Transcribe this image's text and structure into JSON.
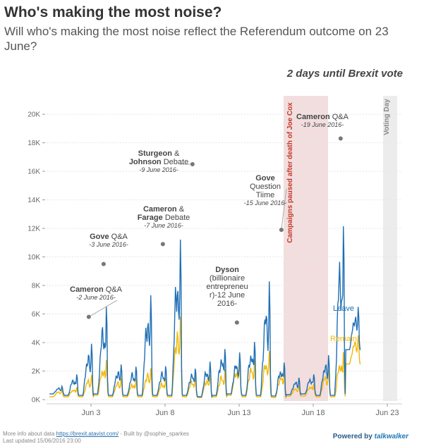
{
  "header": {
    "title": "Who's making the most noise?",
    "subtitle": "Will who's making the most noise reflect the Referendum outcome on 23 June?",
    "countdown": "2 days until Brexit vote"
  },
  "footer": {
    "more_info_prefix": "More info about data",
    "more_info_link": "https://brexit.atavist.com/",
    "built_by": "- Built by @sophie_sparkes",
    "last_updated": "Last updated 15/06/2016 23:00",
    "powered_by": "Powered by",
    "brand": "talkwalker"
  },
  "colors": {
    "leave": "#1f6fb5",
    "remain": "#f2b705",
    "pause_band": "#f2dede",
    "voting_band": "#ececec",
    "pause_text": "#c0392b"
  },
  "chart_data": {
    "type": "line",
    "x_start": "2016-05-31",
    "x_end": "2016-06-24",
    "xticks": [
      {
        "date": "2016-06-03",
        "label": "Jun 3"
      },
      {
        "date": "2016-06-08",
        "label": "Jun 8"
      },
      {
        "date": "2016-06-13",
        "label": "Jun 13"
      },
      {
        "date": "2016-06-18",
        "label": "Jun 18"
      },
      {
        "date": "2016-06-23",
        "label": "Jun 23"
      }
    ],
    "yticks": [
      0,
      2000,
      4000,
      6000,
      8000,
      10000,
      12000,
      14000,
      16000,
      18000,
      20000
    ],
    "ytick_labels": [
      "0K",
      "2K",
      "4K",
      "6K",
      "8K",
      "10K",
      "12K",
      "14K",
      "16K",
      "18K",
      "20K"
    ],
    "ylim": [
      0,
      20500
    ],
    "leave_peak_day": [
      1200,
      2500,
      5800,
      9500,
      3600,
      3300,
      10900,
      3400,
      16500,
      3200,
      3800,
      5400,
      4600,
      6200,
      11900,
      3900,
      2100,
      2500,
      4500,
      18300,
      8000
    ],
    "leave_trough_day": [
      400,
      300,
      300,
      400,
      300,
      300,
      300,
      300,
      300,
      300,
      200,
      300,
      400,
      300,
      300,
      250,
      350,
      400,
      300,
      300,
      3500
    ],
    "remain_peak_day": [
      900,
      1200,
      2500,
      4000,
      2200,
      2000,
      3300,
      2100,
      9000,
      2400,
      2600,
      3000,
      3700,
      4200,
      5000,
      3100,
      1300,
      1600,
      3000,
      5000,
      5500
    ],
    "remain_trough_day": [
      200,
      200,
      200,
      300,
      200,
      200,
      200,
      200,
      200,
      200,
      150,
      200,
      300,
      200,
      200,
      150,
      250,
      250,
      200,
      200,
      2500
    ],
    "series_labels": [
      "Leave",
      "Remain"
    ],
    "pause_band": {
      "start": "2016-06-16",
      "end": "2016-06-19",
      "label": "Campaigns paused after death of Joe Cox"
    },
    "voting_band": {
      "start": "2016-06-23",
      "end": "2016-06-24",
      "label": "Voting Day"
    },
    "annotations": [
      {
        "id": "cam-qa-1",
        "title": "Cameron",
        "suffix": " Q&A",
        "date_label": "-2 June 2016-",
        "point_date": "2016-06-02",
        "point_value": 5800
      },
      {
        "id": "gove-qa",
        "title": "Gove",
        "suffix": " Q&A",
        "date_label": "-3 June 2016-",
        "point_date": "2016-06-03",
        "point_value": 9500
      },
      {
        "id": "sturgeon",
        "title": "Sturgeon",
        "suffix": " &",
        "title2": "Johnson",
        "suffix2": " Debate",
        "date_label": "-9 June 2016-",
        "point_date": "2016-06-09",
        "point_value": 16500
      },
      {
        "id": "cam-farage",
        "title": "Cameron",
        "suffix": " &",
        "title2": "Farage",
        "suffix2": " Debate",
        "date_label": "-7 June 2016-",
        "point_date": "2016-06-07",
        "point_value": 10900
      },
      {
        "id": "dyson",
        "title": "Dyson",
        "lines": [
          "(billionaire",
          "entrepreneu",
          "r)-12 June",
          "2016-"
        ],
        "point_date": "2016-06-12",
        "point_value": 5400
      },
      {
        "id": "gove-qt",
        "title": "Gove",
        "lines": [
          "Question",
          "Tiime"
        ],
        "date_label": "-15 June 2016-",
        "point_date": "2016-06-15",
        "point_value": 11900
      },
      {
        "id": "cam-qa-2",
        "title": "Cameron",
        "suffix": " Q&A",
        "date_label": "-19 June 2016-",
        "point_date": "2016-06-19",
        "point_value": 18300
      }
    ]
  }
}
